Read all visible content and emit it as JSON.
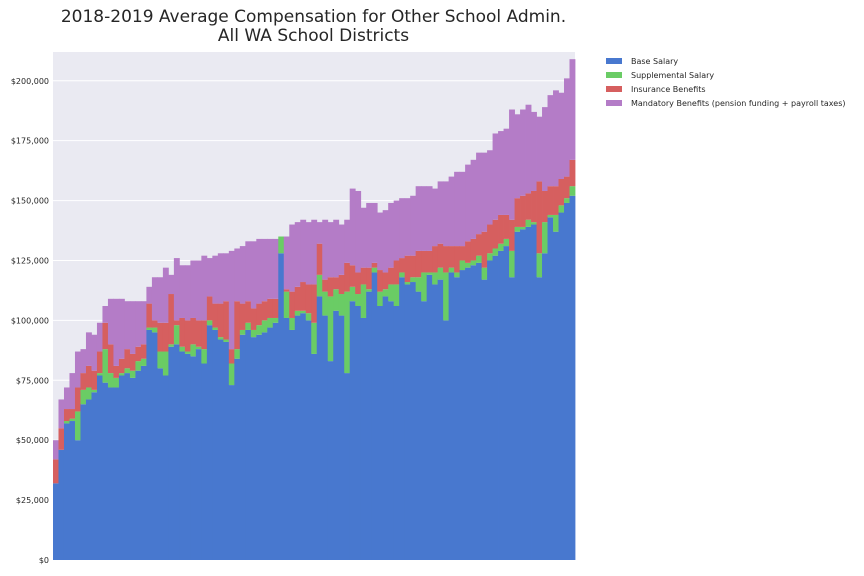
{
  "chart_data": {
    "type": "bar",
    "stacked": true,
    "title": "2018-2019 Average Compensation for Other School Admin.",
    "subtitle": "All WA School Districts",
    "xlabel": "",
    "ylabel": "",
    "ylim": [
      0,
      212000
    ],
    "yticks": [
      0,
      25000,
      50000,
      75000,
      100000,
      125000,
      150000,
      175000,
      200000
    ],
    "ytick_labels": [
      "$0",
      "$25,000",
      "$50,000",
      "$75,000",
      "$100,000",
      "$125,000",
      "$150,000",
      "$175,000",
      "$200,000"
    ],
    "grid": true,
    "legend_position": "outside-top-right",
    "background": "#eaeaf2",
    "series": [
      {
        "name": "Base Salary",
        "color": "#4878cf",
        "values": [
          32000,
          46000,
          57000,
          58000,
          50000,
          65000,
          67000,
          70000,
          77000,
          74000,
          72000,
          72000,
          77000,
          78000,
          76000,
          79000,
          81000,
          96000,
          95000,
          80000,
          77000,
          89000,
          90000,
          87000,
          86000,
          85000,
          88000,
          82000,
          98000,
          96000,
          92000,
          91000,
          73000,
          84000,
          94000,
          96000,
          93000,
          94000,
          95000,
          97000,
          99000,
          128000,
          101000,
          96000,
          102000,
          103000,
          100000,
          86000,
          110000,
          102000,
          83000,
          104000,
          102000,
          78000,
          108000,
          106000,
          101000,
          112000,
          120000,
          106000,
          110000,
          108000,
          106000,
          118000,
          115000,
          116000,
          112000,
          108000,
          119000,
          115000,
          117000,
          100000,
          120000,
          118000,
          121000,
          122000,
          123000,
          124000,
          117000,
          125000,
          127000,
          129000,
          131000,
          118000,
          137000,
          138000,
          139000,
          140000,
          118000,
          128000,
          143000,
          137000,
          145000,
          149000,
          152000
        ]
      },
      {
        "name": "Supplemental Salary",
        "color": "#6acc65",
        "values": [
          0,
          0,
          1000,
          1000,
          12000,
          6000,
          5000,
          1000,
          1000,
          14000,
          6000,
          4000,
          1000,
          2000,
          3000,
          4000,
          3000,
          1000,
          2000,
          7000,
          10000,
          1000,
          8000,
          2000,
          1000,
          5000,
          1000,
          6000,
          2000,
          1000,
          1000,
          1000,
          9000,
          4000,
          2000,
          3000,
          3000,
          4000,
          5000,
          4000,
          2000,
          7000,
          11000,
          5000,
          2000,
          1000,
          3000,
          13000,
          9000,
          10000,
          27000,
          9000,
          9000,
          34000,
          6000,
          5000,
          14000,
          1000,
          2000,
          6000,
          3000,
          7000,
          9000,
          2000,
          1000,
          2000,
          6000,
          12000,
          1000,
          5000,
          5000,
          20000,
          2000,
          2000,
          4000,
          2000,
          2000,
          3000,
          5000,
          3000,
          3000,
          3000,
          3000,
          11000,
          2000,
          1000,
          3000,
          1000,
          10000,
          13000,
          1000,
          7000,
          3000,
          2000,
          4000
        ]
      },
      {
        "name": "Insurance Benefits",
        "color": "#d65f5f",
        "values": [
          10000,
          9000,
          5000,
          4000,
          10000,
          7000,
          9000,
          8000,
          9000,
          11000,
          12000,
          5000,
          6000,
          8000,
          7000,
          6000,
          6000,
          10000,
          3000,
          12000,
          12000,
          21000,
          2000,
          12000,
          13000,
          11000,
          11000,
          12000,
          10000,
          10000,
          14000,
          16000,
          6000,
          20000,
          11000,
          9000,
          9000,
          9000,
          8000,
          8000,
          8000,
          0,
          1000,
          11000,
          10000,
          12000,
          12000,
          16000,
          13000,
          5000,
          8000,
          5000,
          8000,
          12000,
          9000,
          9000,
          7000,
          9000,
          2000,
          9000,
          7000,
          7000,
          10000,
          6000,
          11000,
          9000,
          11000,
          9000,
          9000,
          11000,
          10000,
          11000,
          9000,
          11000,
          6000,
          9000,
          9000,
          9000,
          15000,
          12000,
          12000,
          12000,
          10000,
          13000,
          12000,
          13000,
          11000,
          13000,
          30000,
          13000,
          12000,
          12000,
          11000,
          9000,
          11000
        ]
      },
      {
        "name": "Mandatory Benefits (pension funding + payroll taxes)",
        "color": "#b47cc7",
        "values": [
          8000,
          12000,
          9000,
          15000,
          15000,
          10000,
          14000,
          15000,
          12000,
          7000,
          19000,
          28000,
          25000,
          20000,
          22000,
          19000,
          18000,
          7000,
          18000,
          19000,
          23000,
          8000,
          26000,
          22000,
          23000,
          24000,
          25000,
          27000,
          16000,
          20000,
          21000,
          20000,
          41000,
          22000,
          24000,
          25000,
          28000,
          27000,
          26000,
          25000,
          25000,
          0,
          22000,
          28000,
          27000,
          26000,
          26000,
          27000,
          9000,
          25000,
          23000,
          24000,
          21000,
          18000,
          32000,
          34000,
          25000,
          27000,
          25000,
          24000,
          26000,
          27000,
          25000,
          25000,
          24000,
          25000,
          27000,
          27000,
          27000,
          24000,
          26000,
          27000,
          29000,
          31000,
          31000,
          32000,
          33000,
          34000,
          33000,
          31000,
          36000,
          35000,
          36000,
          46000,
          35000,
          36000,
          37000,
          33000,
          27000,
          35000,
          38000,
          40000,
          36000,
          41000,
          42000
        ]
      }
    ]
  }
}
